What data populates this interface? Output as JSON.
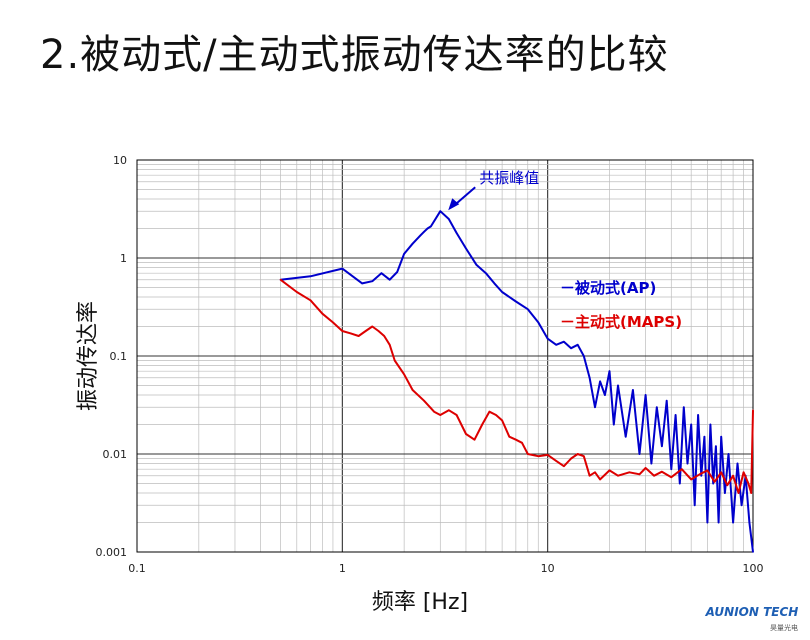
{
  "slide": {
    "title": "2.被动式/主动式振动传达率的比较"
  },
  "logo": {
    "name": "AUNION TECH",
    "sub": "昊量光电",
    "color": "#1e5fb4"
  },
  "chart_data": {
    "type": "line",
    "xscale": "log",
    "yscale": "log",
    "xlim": [
      0.1,
      100
    ],
    "ylim": [
      0.001,
      10
    ],
    "xlabel": "频率 [Hz]",
    "ylabel": "振动传达率",
    "grid": true,
    "x_ticks": [
      "0.1",
      "1",
      "10",
      "100"
    ],
    "y_ticks": [
      "0.001",
      "0.01",
      "0.1",
      "1",
      "10"
    ],
    "legend_position": "right",
    "annotation": {
      "text": "共振峰值",
      "x": 3.1,
      "y": 3.0,
      "color": "#0000cc"
    },
    "series": [
      {
        "name": "被动式(AP)",
        "legend_label": "－被动式(AP)",
        "color": "#0000cc",
        "x": [
          0.5,
          0.7,
          1.0,
          1.25,
          1.4,
          1.55,
          1.7,
          1.85,
          2.0,
          2.2,
          2.4,
          2.5,
          2.6,
          2.7,
          3.0,
          3.3,
          3.6,
          4.0,
          4.5,
          5.0,
          5.5,
          6.0,
          7.0,
          8.0,
          9.0,
          10.0,
          11.0,
          12.0,
          13.0,
          14.0,
          15.0,
          16.0,
          17.0,
          18.0,
          19.0,
          20.0,
          21.0,
          22.0,
          24.0,
          26.0,
          28.0,
          30.0,
          32.0,
          34.0,
          36.0,
          38.0,
          40.0,
          42.0,
          44.0,
          46.0,
          48.0,
          50.0,
          52.0,
          54.0,
          56.0,
          58.0,
          60.0,
          62.0,
          64.0,
          66.0,
          68.0,
          70.0,
          73.0,
          76.0,
          80.0,
          84.0,
          88.0,
          92.0,
          96.0,
          100.0
        ],
        "y": [
          0.6,
          0.65,
          0.78,
          0.55,
          0.58,
          0.7,
          0.6,
          0.72,
          1.1,
          1.4,
          1.7,
          1.85,
          2.0,
          2.1,
          3.0,
          2.5,
          1.8,
          1.25,
          0.85,
          0.7,
          0.55,
          0.45,
          0.36,
          0.3,
          0.22,
          0.15,
          0.13,
          0.14,
          0.12,
          0.13,
          0.1,
          0.06,
          0.03,
          0.055,
          0.04,
          0.07,
          0.02,
          0.05,
          0.015,
          0.045,
          0.01,
          0.04,
          0.008,
          0.03,
          0.012,
          0.035,
          0.007,
          0.025,
          0.005,
          0.03,
          0.008,
          0.02,
          0.003,
          0.025,
          0.006,
          0.015,
          0.002,
          0.02,
          0.005,
          0.012,
          0.002,
          0.015,
          0.004,
          0.01,
          0.002,
          0.008,
          0.003,
          0.006,
          0.002,
          0.001
        ]
      },
      {
        "name": "主动式(MAPS)",
        "legend_label": "－主动式(MAPS)",
        "color": "#dd0000",
        "x": [
          0.5,
          0.6,
          0.7,
          0.8,
          0.9,
          1.0,
          1.1,
          1.2,
          1.3,
          1.4,
          1.5,
          1.6,
          1.7,
          1.8,
          2.0,
          2.2,
          2.5,
          2.8,
          3.0,
          3.3,
          3.6,
          4.0,
          4.4,
          4.8,
          5.2,
          5.6,
          6.0,
          6.5,
          7.0,
          7.5,
          8.0,
          9.0,
          10.0,
          11.0,
          12.0,
          13.0,
          14.0,
          15.0,
          16.0,
          17.0,
          18.0,
          20.0,
          22.0,
          25.0,
          28.0,
          30.0,
          33.0,
          36.0,
          40.0,
          45.0,
          50.0,
          55.0,
          60.0,
          65.0,
          70.0,
          75.0,
          80.0,
          85.0,
          90.0,
          95.0,
          98.0,
          100.0
        ],
        "y": [
          0.6,
          0.45,
          0.37,
          0.27,
          0.22,
          0.18,
          0.17,
          0.16,
          0.18,
          0.2,
          0.18,
          0.16,
          0.13,
          0.09,
          0.065,
          0.045,
          0.035,
          0.027,
          0.025,
          0.028,
          0.025,
          0.016,
          0.014,
          0.02,
          0.027,
          0.025,
          0.022,
          0.015,
          0.014,
          0.013,
          0.01,
          0.0095,
          0.0098,
          0.0085,
          0.0075,
          0.009,
          0.01,
          0.0095,
          0.006,
          0.0065,
          0.0055,
          0.0068,
          0.006,
          0.0065,
          0.0062,
          0.0072,
          0.006,
          0.0066,
          0.0058,
          0.007,
          0.0055,
          0.0062,
          0.0068,
          0.0052,
          0.0065,
          0.0048,
          0.006,
          0.004,
          0.0065,
          0.005,
          0.004,
          0.028
        ]
      }
    ]
  }
}
